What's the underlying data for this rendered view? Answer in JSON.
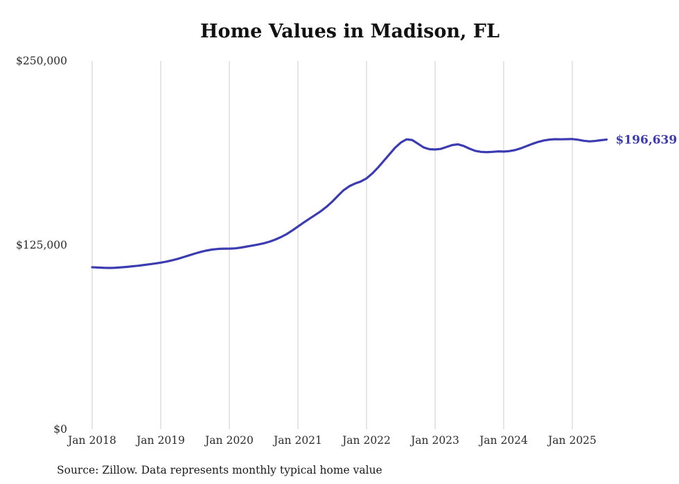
{
  "chart_data": {
    "type": "line",
    "title": "Home Values in Madison, FL",
    "series_name": "Monthly typical home value",
    "freq": "monthly",
    "x_start": "2018-01",
    "x_end": "2025-07",
    "x_ticks": [
      "Jan 2018",
      "Jan 2019",
      "Jan 2020",
      "Jan 2021",
      "Jan 2022",
      "Jan 2023",
      "Jan 2024",
      "Jan 2025"
    ],
    "y_ticks": [
      {
        "label": "$0",
        "value": 0
      },
      {
        "label": "$125,000",
        "value": 125000
      },
      {
        "label": "$250,000",
        "value": 250000
      }
    ],
    "ylim": [
      0,
      250000
    ],
    "grid": "vertical-only",
    "legend": "none",
    "end_label": "$196,639",
    "final_value": 196639,
    "values": [
      110000,
      109800,
      109600,
      109500,
      109600,
      109900,
      110200,
      110600,
      111000,
      111500,
      112000,
      112500,
      113100,
      113800,
      114700,
      115700,
      116900,
      118100,
      119300,
      120400,
      121300,
      122000,
      122400,
      122600,
      122600,
      122800,
      123300,
      124000,
      124700,
      125400,
      126200,
      127300,
      128700,
      130400,
      132400,
      134900,
      137600,
      140300,
      142900,
      145400,
      148000,
      151000,
      154500,
      158500,
      162300,
      165000,
      166800,
      168200,
      170300,
      173600,
      177600,
      182100,
      186600,
      191100,
      194600,
      196800,
      196300,
      193800,
      191300,
      190100,
      189900,
      190300,
      191600,
      192900,
      193400,
      192300,
      190500,
      189000,
      188300,
      188100,
      188300,
      188600,
      188500,
      188800,
      189500,
      190700,
      192200,
      193700,
      195000,
      196000,
      196600,
      196900,
      196800,
      196900,
      197000,
      196500,
      195800,
      195400,
      195700,
      196200,
      196639
    ]
  },
  "footer": {
    "source": "Source: Zillow. Data represents monthly typical home value"
  },
  "colors": {
    "line": "#3b3bb2",
    "end_label": "#3b3bb2",
    "grid": "#cccccc",
    "title": "#111111",
    "axis_text": "#2b2b2b",
    "source_text": "#1a1a1a",
    "background": "#ffffff"
  }
}
